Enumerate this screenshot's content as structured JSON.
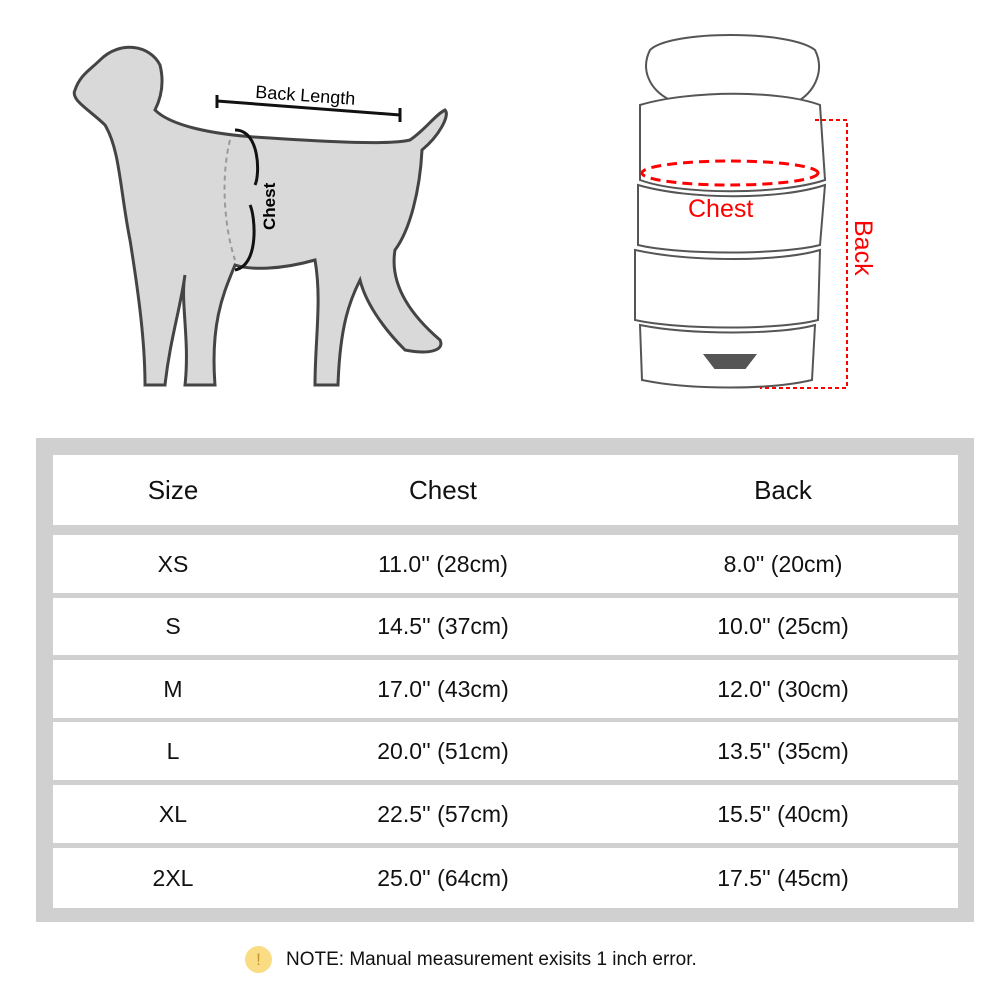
{
  "diagram": {
    "dog_labels": {
      "back_length": "Back Length",
      "chest": "Chest"
    },
    "coat_labels": {
      "chest": "Chest",
      "back": "Back"
    },
    "accent_color": "#ff0000"
  },
  "table": {
    "headers": [
      "Size",
      "Chest",
      "Back"
    ],
    "rows": [
      [
        "XS",
        "11.0'' (28cm)",
        "8.0'' (20cm)"
      ],
      [
        "S",
        "14.5'' (37cm)",
        "10.0'' (25cm)"
      ],
      [
        "M",
        "17.0'' (43cm)",
        "12.0'' (30cm)"
      ],
      [
        "L",
        "20.0'' (51cm)",
        "13.5'' (35cm)"
      ],
      [
        "XL",
        "22.5'' (57cm)",
        "15.5'' (40cm)"
      ],
      [
        "2XL",
        "25.0'' (64cm)",
        "17.5'' (45cm)"
      ]
    ]
  },
  "note": {
    "icon": "exclamation-icon",
    "text": "NOTE: Manual measurement exisits 1 inch error."
  }
}
